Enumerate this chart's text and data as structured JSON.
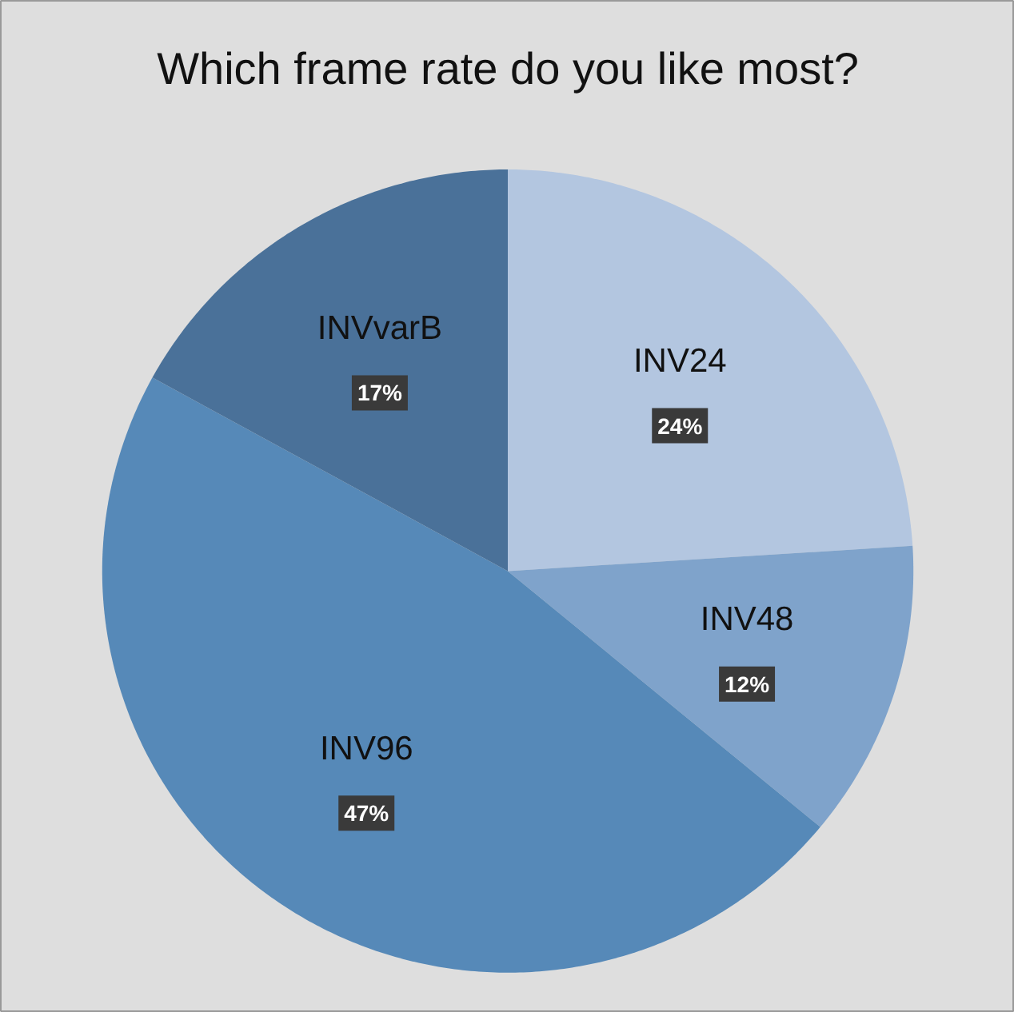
{
  "chart_data": {
    "type": "pie",
    "title": "Which frame rate do you like most?",
    "categories": [
      "INV24",
      "INV48",
      "INV96",
      "INVvarB"
    ],
    "values": [
      24,
      12,
      47,
      17
    ],
    "value_labels": [
      "24%",
      "12%",
      "47%",
      "17%"
    ],
    "colors": [
      "#b3c6e0",
      "#7fa3cb",
      "#5689b8",
      "#4a7199"
    ]
  }
}
